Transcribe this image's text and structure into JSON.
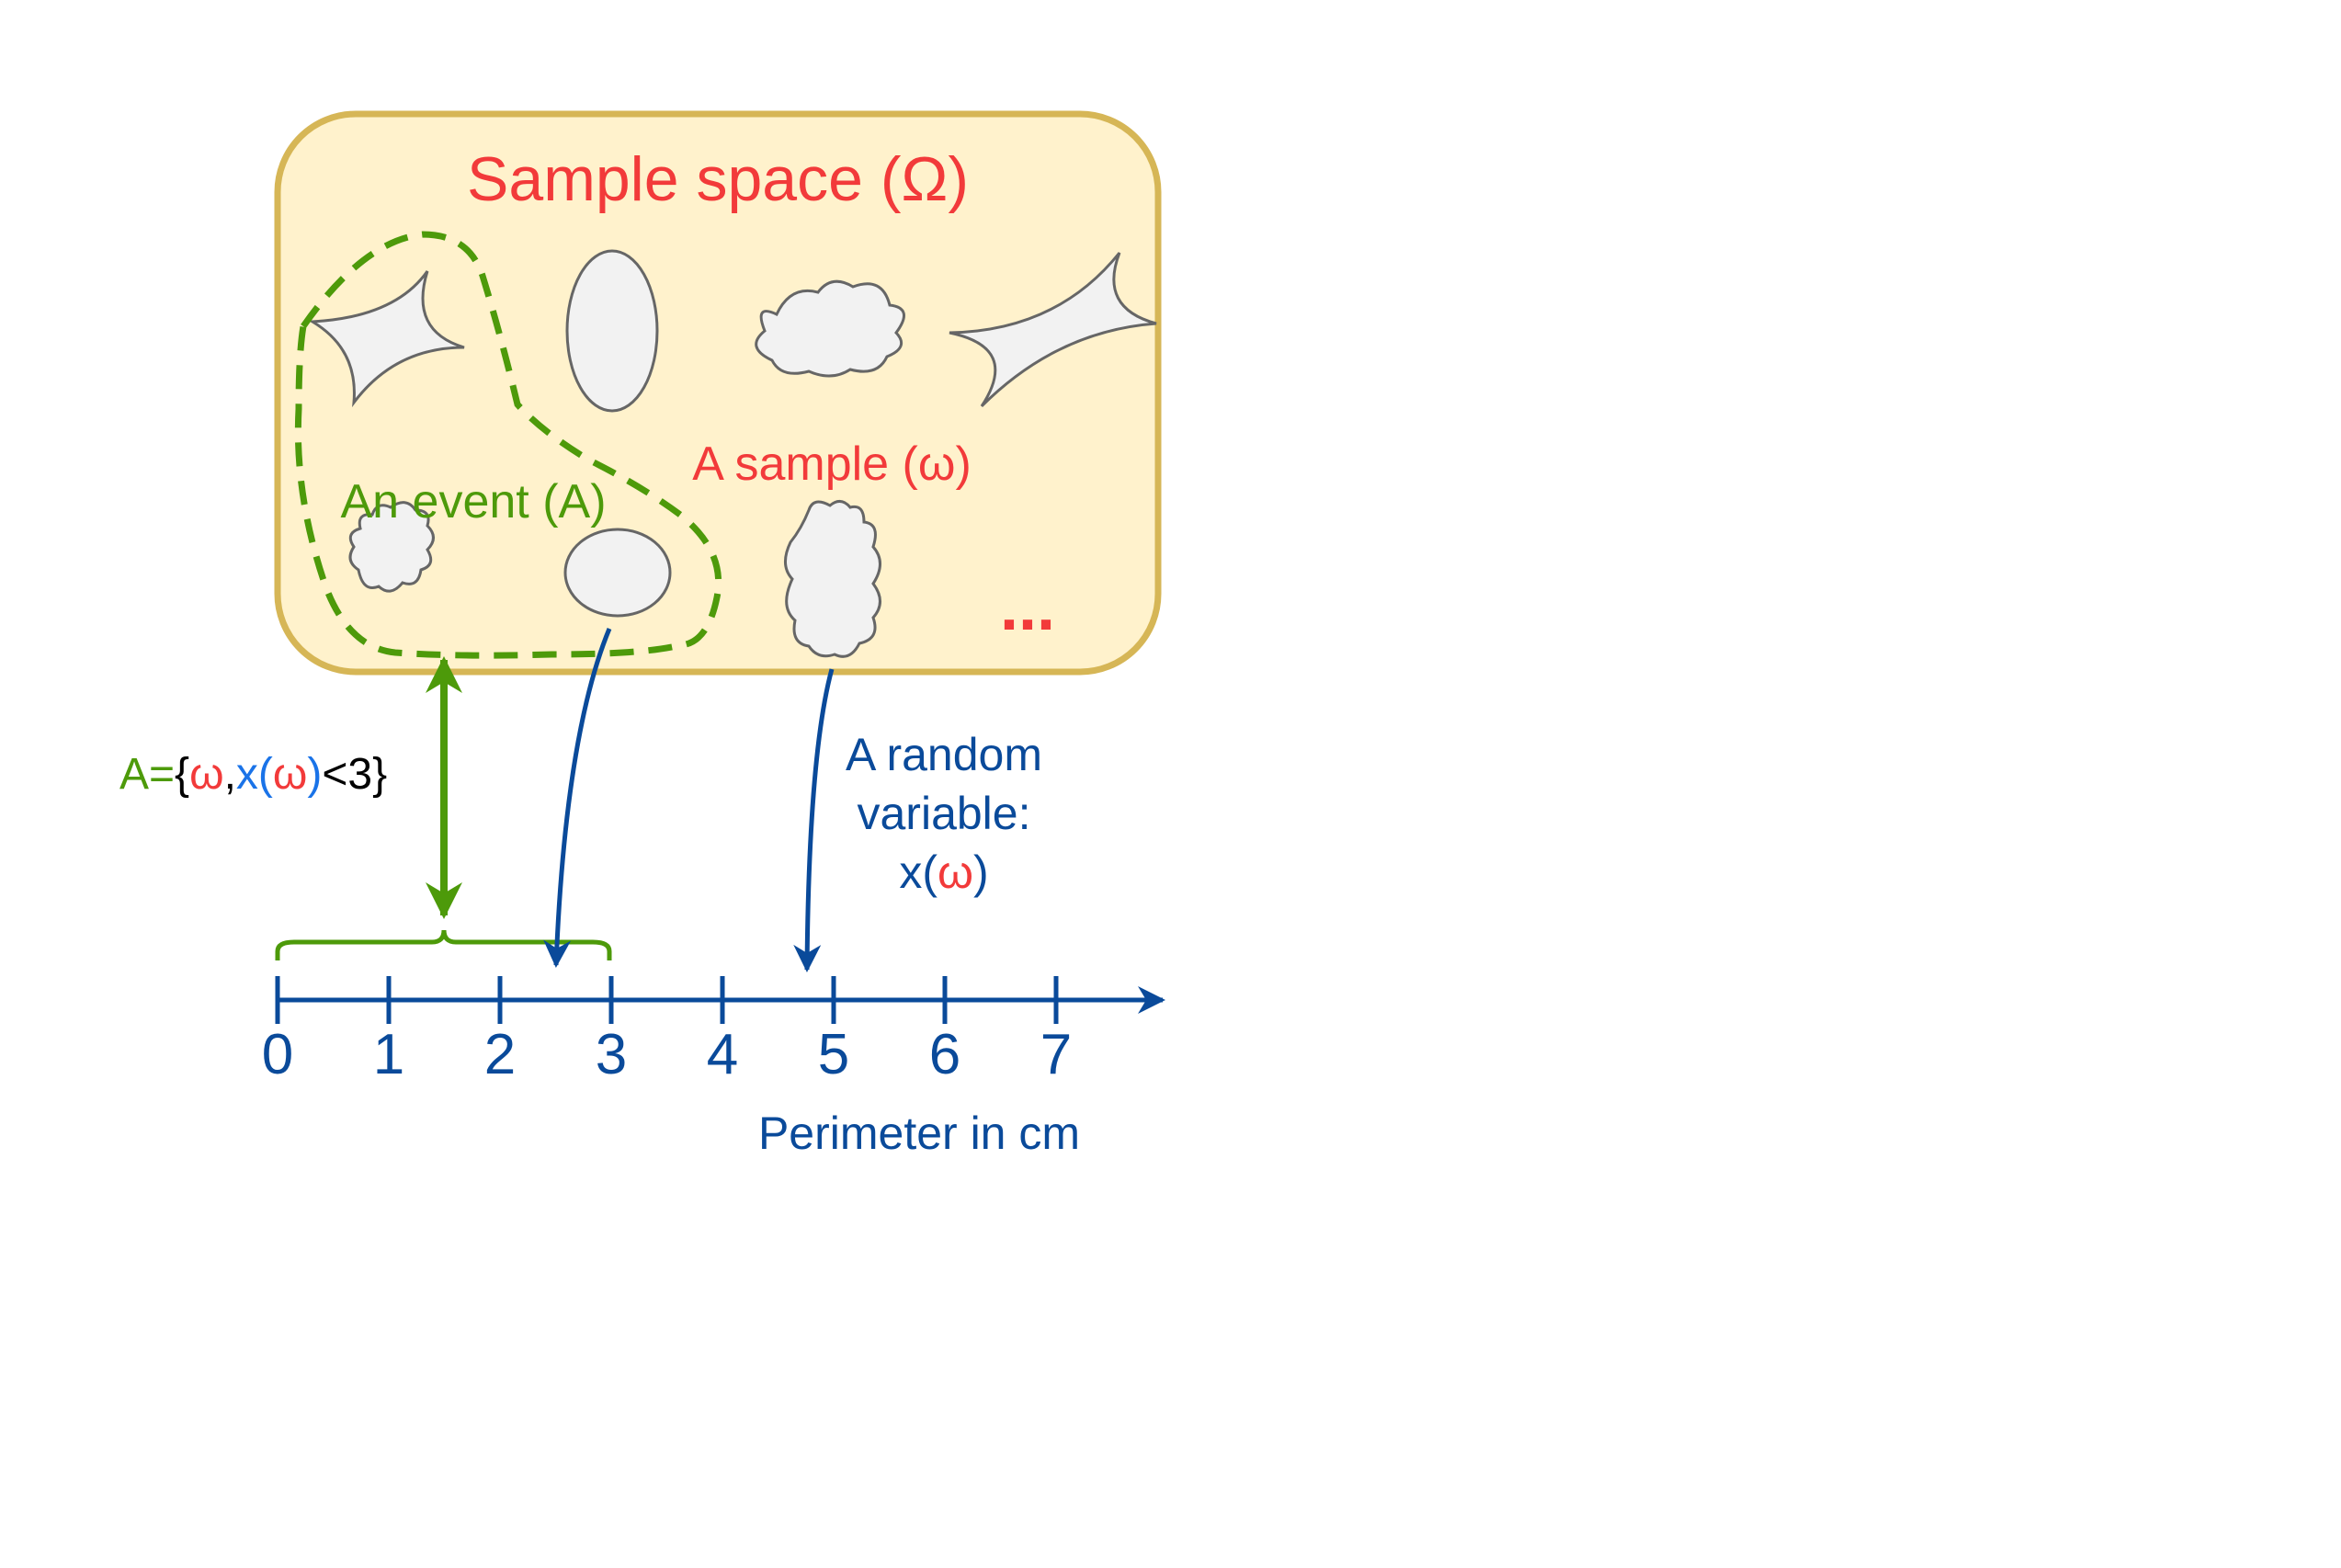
{
  "colors": {
    "box_fill": "#fff2cc",
    "box_stroke": "#d6b656",
    "red": "#f23a3a",
    "green": "#4d9a0a",
    "blue": "#0a4a9a",
    "light_blue": "#1a73e8",
    "black": "#000000",
    "shape_fill": "#f2f2f2",
    "shape_stroke": "#666666"
  },
  "sample_space": {
    "title": "Sample space (Ω)",
    "sample_label": "A sample (ω)",
    "event_label": "An event (A)",
    "ellipsis": "..."
  },
  "event_definition": {
    "a": "A",
    "eq": "=",
    "open_brace": "{",
    "omega1": "ω",
    "comma": ",",
    "x": "x",
    "paren_open": "(",
    "omega2": "ω",
    "paren_close": ")",
    "lt3": "<3",
    "close_brace": "}"
  },
  "random_variable": {
    "line1": "A random",
    "line2": "variable:",
    "line3_x": "x(",
    "line3_omega": "ω",
    "line3_close": ")"
  },
  "axis": {
    "ticks": [
      "0",
      "1",
      "2",
      "3",
      "4",
      "5",
      "6",
      "7"
    ],
    "label": "Perimeter in cm"
  }
}
